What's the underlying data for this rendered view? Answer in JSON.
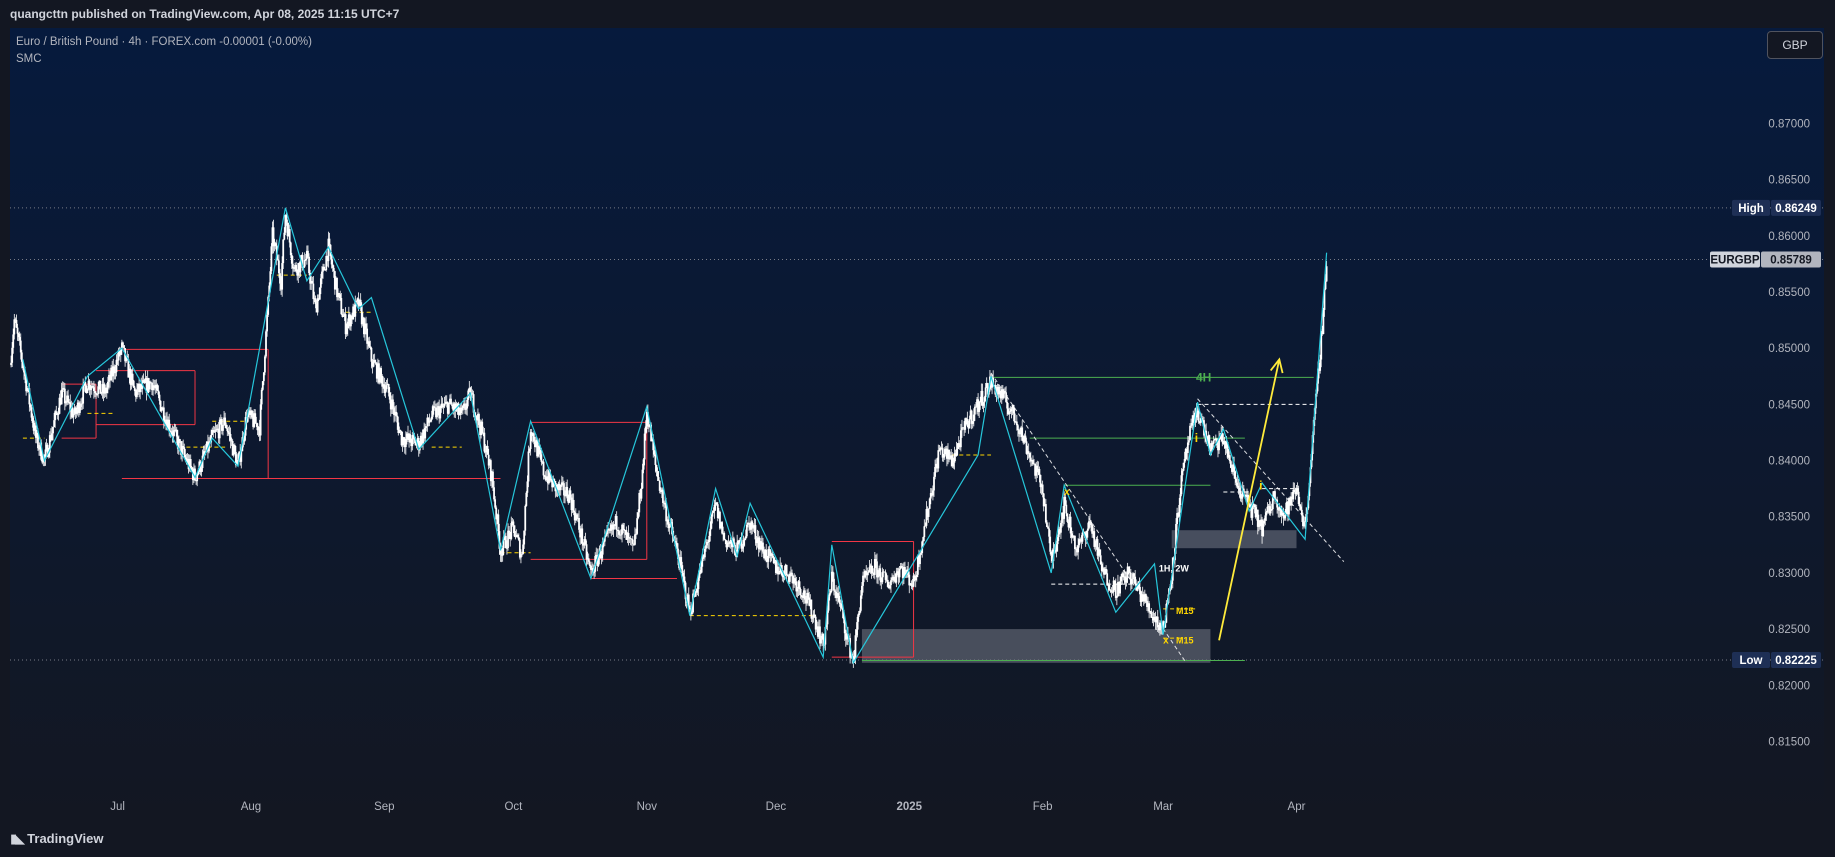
{
  "header": {
    "published": "quangcttn published on TradingView.com, Apr 08, 2025 11:15 UTC+7"
  },
  "legend": {
    "symbol_line": "Euro / British Pound · 4h · FOREX.com  -0.00001 (-0.00%)",
    "indicator": "SMC"
  },
  "currency_button": "GBP",
  "footer": {
    "brand": "TradingView"
  },
  "colors": {
    "background_top": "#061a3d",
    "background_bottom": "#131722",
    "candle": "#ffffff",
    "zigzag": "#26c6da",
    "resistance": "#f23645",
    "support_dash": "#ffd600",
    "green_level": "#4caf50",
    "arrow": "#ffeb3b",
    "zone": "#b2b5be"
  },
  "chart_data": {
    "type": "candlestick",
    "symbol": "EURGBP",
    "timeframe": "4h",
    "ylim": [
      0.8105,
      0.8785
    ],
    "y_ticks": [
      "0.87000",
      "0.86500",
      "0.86000",
      "0.85500",
      "0.85000",
      "0.84500",
      "0.84000",
      "0.83500",
      "0.83000",
      "0.82500",
      "0.82000",
      "0.81500"
    ],
    "x_ticks": [
      {
        "label": "Jul",
        "date": "2024-07-01"
      },
      {
        "label": "Aug",
        "date": "2024-08-01"
      },
      {
        "label": "Sep",
        "date": "2024-09-01"
      },
      {
        "label": "Oct",
        "date": "2024-10-01"
      },
      {
        "label": "Nov",
        "date": "2024-11-01"
      },
      {
        "label": "Dec",
        "date": "2024-12-01"
      },
      {
        "label": "2025",
        "date": "2025-01-01"
      },
      {
        "label": "Feb",
        "date": "2025-02-01"
      },
      {
        "label": "Mar",
        "date": "2025-03-01"
      },
      {
        "label": "Apr",
        "date": "2025-04-01"
      }
    ],
    "x_range": [
      "2024-06-06",
      "2025-05-09"
    ],
    "price_path": [
      [
        "2024-06-06",
        0.8485
      ],
      [
        "2024-06-07",
        0.8525
      ],
      [
        "2024-06-09",
        0.8485
      ],
      [
        "2024-06-12",
        0.842
      ],
      [
        "2024-06-14",
        0.84
      ],
      [
        "2024-06-18",
        0.846
      ],
      [
        "2024-06-21",
        0.844
      ],
      [
        "2024-06-24",
        0.847
      ],
      [
        "2024-06-28",
        0.846
      ],
      [
        "2024-07-02",
        0.85
      ],
      [
        "2024-07-05",
        0.846
      ],
      [
        "2024-07-09",
        0.847
      ],
      [
        "2024-07-12",
        0.844
      ],
      [
        "2024-07-17",
        0.84
      ],
      [
        "2024-07-19",
        0.8385
      ],
      [
        "2024-07-23",
        0.842
      ],
      [
        "2024-07-26",
        0.8435
      ],
      [
        "2024-07-29",
        0.8395
      ],
      [
        "2024-07-31",
        0.844
      ],
      [
        "2024-08-03",
        0.843
      ],
      [
        "2024-08-05",
        0.854
      ],
      [
        "2024-08-06",
        0.86
      ],
      [
        "2024-08-08",
        0.856
      ],
      [
        "2024-08-09",
        0.862
      ],
      [
        "2024-08-11",
        0.857
      ],
      [
        "2024-08-14",
        0.858
      ],
      [
        "2024-08-16",
        0.8535
      ],
      [
        "2024-08-19",
        0.859
      ],
      [
        "2024-08-21",
        0.855
      ],
      [
        "2024-08-23",
        0.852
      ],
      [
        "2024-08-26",
        0.854
      ],
      [
        "2024-08-29",
        0.849
      ],
      [
        "2024-09-02",
        0.846
      ],
      [
        "2024-09-05",
        0.842
      ],
      [
        "2024-09-09",
        0.8415
      ],
      [
        "2024-09-12",
        0.844
      ],
      [
        "2024-09-16",
        0.845
      ],
      [
        "2024-09-19",
        0.844
      ],
      [
        "2024-09-21",
        0.846
      ],
      [
        "2024-09-24",
        0.842
      ],
      [
        "2024-09-26",
        0.8385
      ],
      [
        "2024-09-28",
        0.832
      ],
      [
        "2024-10-01",
        0.834
      ],
      [
        "2024-10-03",
        0.8315
      ],
      [
        "2024-10-05",
        0.843
      ],
      [
        "2024-10-08",
        0.839
      ],
      [
        "2024-10-11",
        0.8375
      ],
      [
        "2024-10-14",
        0.837
      ],
      [
        "2024-10-17",
        0.833
      ],
      [
        "2024-10-19",
        0.83
      ],
      [
        "2024-10-22",
        0.8325
      ],
      [
        "2024-10-25",
        0.8345
      ],
      [
        "2024-10-29",
        0.832
      ],
      [
        "2024-10-31",
        0.839
      ],
      [
        "2024-11-01",
        0.8445
      ],
      [
        "2024-11-03",
        0.8395
      ],
      [
        "2024-11-06",
        0.8345
      ],
      [
        "2024-11-08",
        0.832
      ],
      [
        "2024-11-11",
        0.8265
      ],
      [
        "2024-11-14",
        0.831
      ],
      [
        "2024-11-17",
        0.836
      ],
      [
        "2024-11-19",
        0.833
      ],
      [
        "2024-11-22",
        0.832
      ],
      [
        "2024-11-25",
        0.8345
      ],
      [
        "2024-11-28",
        0.832
      ],
      [
        "2024-12-01",
        0.8305
      ],
      [
        "2024-12-04",
        0.83
      ],
      [
        "2024-12-07",
        0.8285
      ],
      [
        "2024-12-10",
        0.826
      ],
      [
        "2024-12-12",
        0.8235
      ],
      [
        "2024-12-14",
        0.8295
      ],
      [
        "2024-12-16",
        0.827
      ],
      [
        "2024-12-18",
        0.8235
      ],
      [
        "2024-12-19",
        0.8222
      ],
      [
        "2024-12-21",
        0.829
      ],
      [
        "2024-12-24",
        0.8305
      ],
      [
        "2024-12-27",
        0.829
      ],
      [
        "2024-12-30",
        0.8305
      ],
      [
        "2025-01-02",
        0.829
      ],
      [
        "2025-01-05",
        0.835
      ],
      [
        "2025-01-08",
        0.841
      ],
      [
        "2025-01-11",
        0.84
      ],
      [
        "2025-01-14",
        0.843
      ],
      [
        "2025-01-17",
        0.845
      ],
      [
        "2025-01-20",
        0.847
      ],
      [
        "2025-01-23",
        0.8455
      ],
      [
        "2025-01-26",
        0.8435
      ],
      [
        "2025-01-29",
        0.8405
      ],
      [
        "2025-02-01",
        0.8375
      ],
      [
        "2025-02-03",
        0.831
      ],
      [
        "2025-02-06",
        0.836
      ],
      [
        "2025-02-09",
        0.832
      ],
      [
        "2025-02-12",
        0.8345
      ],
      [
        "2025-02-15",
        0.83
      ],
      [
        "2025-02-18",
        0.8285
      ],
      [
        "2025-02-21",
        0.83
      ],
      [
        "2025-02-24",
        0.828
      ],
      [
        "2025-02-27",
        0.826
      ],
      [
        "2025-03-01",
        0.825
      ],
      [
        "2025-03-03",
        0.83
      ],
      [
        "2025-03-05",
        0.8375
      ],
      [
        "2025-03-07",
        0.842
      ],
      [
        "2025-03-09",
        0.8445
      ],
      [
        "2025-03-12",
        0.841
      ],
      [
        "2025-03-15",
        0.842
      ],
      [
        "2025-03-18",
        0.838
      ],
      [
        "2025-03-21",
        0.836
      ],
      [
        "2025-03-24",
        0.834
      ],
      [
        "2025-03-27",
        0.837
      ],
      [
        "2025-03-29",
        0.835
      ],
      [
        "2025-04-01",
        0.8375
      ],
      [
        "2025-04-03",
        0.834
      ],
      [
        "2025-04-05",
        0.843
      ],
      [
        "2025-04-07",
        0.852
      ],
      [
        "2025-04-08",
        0.8579
      ]
    ],
    "high_label": {
      "text": "High",
      "value": "0.86249",
      "price": 0.86249
    },
    "low_label": {
      "text": "Low",
      "value": "0.82225",
      "price": 0.82225
    },
    "current_price": {
      "symbol": "EURGBP",
      "value": "0.85789",
      "price": 0.85789
    },
    "zigzag": [
      [
        "2024-06-09",
        0.849
      ],
      [
        "2024-06-14",
        0.84
      ],
      [
        "2024-06-24",
        0.8475
      ],
      [
        "2024-07-02",
        0.85
      ],
      [
        "2024-07-19",
        0.8385
      ],
      [
        "2024-07-23",
        0.842
      ],
      [
        "2024-07-29",
        0.8395
      ],
      [
        "2024-08-09",
        0.8625
      ],
      [
        "2024-08-14",
        0.856
      ],
      [
        "2024-08-19",
        0.859
      ],
      [
        "2024-08-26",
        0.8535
      ],
      [
        "2024-08-29",
        0.8545
      ],
      [
        "2024-09-09",
        0.841
      ],
      [
        "2024-09-21",
        0.846
      ],
      [
        "2024-09-28",
        0.832
      ],
      [
        "2024-10-05",
        0.8435
      ],
      [
        "2024-10-19",
        0.8295
      ],
      [
        "2024-11-01",
        0.8448
      ],
      [
        "2024-11-11",
        0.8262
      ],
      [
        "2024-11-17",
        0.8375
      ],
      [
        "2024-11-22",
        0.8315
      ],
      [
        "2024-11-25",
        0.8362
      ],
      [
        "2024-12-12",
        0.8225
      ],
      [
        "2024-12-14",
        0.8325
      ],
      [
        "2024-12-19",
        0.822
      ],
      [
        "2025-01-17",
        0.8405
      ],
      [
        "2025-01-20",
        0.8475
      ],
      [
        "2025-02-03",
        0.83
      ],
      [
        "2025-02-06",
        0.8378
      ],
      [
        "2025-02-18",
        0.8265
      ],
      [
        "2025-02-27",
        0.8308
      ],
      [
        "2025-03-01",
        0.8245
      ],
      [
        "2025-03-09",
        0.8452
      ],
      [
        "2025-03-12",
        0.8405
      ],
      [
        "2025-03-15",
        0.8428
      ],
      [
        "2025-03-21",
        0.8355
      ],
      [
        "2025-03-24",
        0.838
      ],
      [
        "2025-04-03",
        0.833
      ],
      [
        "2025-04-08",
        0.8585
      ]
    ],
    "red_boxes": [
      {
        "from": "2024-06-18",
        "to": "2024-06-26",
        "top": 0.8468,
        "bottom": 0.842
      },
      {
        "from": "2024-06-26",
        "to": "2024-07-19",
        "top": 0.848,
        "bottom": 0.8432
      },
      {
        "from": "2024-07-02",
        "to": "2024-08-05",
        "top": 0.8499,
        "bottom": 0.8384
      },
      {
        "from": "2024-07-19",
        "to": "2024-09-28",
        "top": 0.8384,
        "bottom": 0.8384
      },
      {
        "from": "2024-10-05",
        "to": "2024-11-01",
        "top": 0.8434,
        "bottom": 0.8312
      },
      {
        "from": "2024-10-19",
        "to": "2024-11-08",
        "top": 0.8295,
        "bottom": 0.8295
      },
      {
        "from": "2024-12-14",
        "to": "2025-01-02",
        "top": 0.8328,
        "bottom": 0.8225
      }
    ],
    "yellow_dashes": [
      {
        "from": "2024-06-09",
        "to": "2024-06-14",
        "price": 0.842
      },
      {
        "from": "2024-06-24",
        "to": "2024-06-30",
        "price": 0.8442
      },
      {
        "from": "2024-07-17",
        "to": "2024-07-26",
        "price": 0.8412
      },
      {
        "from": "2024-07-23",
        "to": "2024-07-31",
        "price": 0.8435
      },
      {
        "from": "2024-08-07",
        "to": "2024-08-14",
        "price": 0.8565
      },
      {
        "from": "2024-08-23",
        "to": "2024-08-29",
        "price": 0.8532
      },
      {
        "from": "2024-09-12",
        "to": "2024-09-19",
        "price": 0.8412
      },
      {
        "from": "2024-09-28",
        "to": "2024-10-05",
        "price": 0.8318
      },
      {
        "from": "2024-11-11",
        "to": "2024-12-10",
        "price": 0.8262
      },
      {
        "from": "2025-01-11",
        "to": "2025-01-20",
        "price": 0.8405
      },
      {
        "from": "2025-03-01",
        "to": "2025-03-09",
        "price": 0.8268
      },
      {
        "from": "2025-03-01",
        "to": "2025-03-06",
        "price": 0.8242
      }
    ],
    "white_dashes": [
      {
        "from": "2025-02-03",
        "to": "2025-02-24",
        "price": 0.829
      },
      {
        "from": "2025-03-09",
        "to": "2025-04-05",
        "price": 0.845
      },
      {
        "from": "2025-03-24",
        "to": "2025-04-01",
        "price": 0.8375
      },
      {
        "from": "2025-03-15",
        "to": "2025-03-21",
        "price": 0.8372
      }
    ],
    "diagonal_dashes": [
      {
        "from": [
          "2025-01-20",
          0.8478
        ],
        "to": [
          "2025-03-06",
          0.8222
        ]
      },
      {
        "from": [
          "2025-03-09",
          0.8455
        ],
        "to": [
          "2025-04-12",
          0.831
        ]
      }
    ],
    "green_levels": [
      {
        "from": "2025-01-20",
        "to": "2025-04-05",
        "price": 0.8474,
        "label": "4H"
      },
      {
        "from": "2025-01-29",
        "to": "2025-03-20",
        "price": 0.842,
        "label": "i"
      },
      {
        "from": "2025-02-06",
        "to": "2025-03-12",
        "price": 0.8378,
        "label": "i"
      },
      {
        "from": "2024-12-21",
        "to": "2025-03-20",
        "price": 0.8222,
        "label": ""
      }
    ],
    "gray_zones": [
      {
        "from": "2024-12-21",
        "to": "2025-03-12",
        "top": 0.825,
        "bottom": 0.822
      },
      {
        "from": "2025-03-03",
        "to": "2025-04-01",
        "top": 0.8338,
        "bottom": 0.8322
      }
    ],
    "annotations": [
      {
        "text": "1H, 2W",
        "date": "2025-02-28",
        "price": 0.8304
      },
      {
        "text": "M15",
        "date": "2025-03-04",
        "price": 0.8266
      },
      {
        "text": "M15",
        "date": "2025-03-04",
        "price": 0.824
      },
      {
        "text": "x",
        "date": "2025-02-06",
        "price": 0.8372
      },
      {
        "text": "x",
        "date": "2025-03-01",
        "price": 0.824
      }
    ],
    "arrow": {
      "from": [
        "2025-03-14",
        0.824
      ],
      "to": [
        "2025-03-28",
        0.849
      ]
    }
  }
}
